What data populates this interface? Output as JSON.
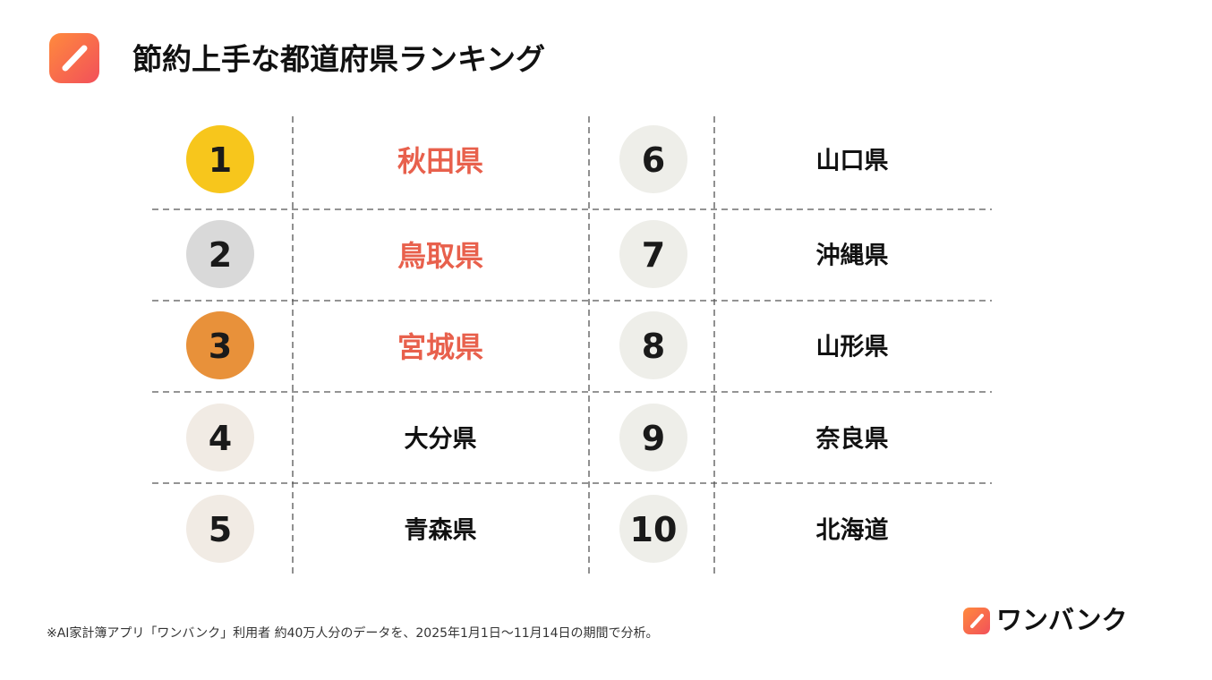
{
  "header": {
    "title": "節約上手な都道府県ランキング"
  },
  "table": {
    "rows": [
      {
        "rank": 1,
        "name": "秋田県"
      },
      {
        "rank": 2,
        "name": "鳥取県"
      },
      {
        "rank": 3,
        "name": "宮城県"
      },
      {
        "rank": 4,
        "name": "大分県"
      },
      {
        "rank": 5,
        "name": "青森県"
      },
      {
        "rank": 6,
        "name": "山口県"
      },
      {
        "rank": 7,
        "name": "沖縄県"
      },
      {
        "rank": 8,
        "name": "山形県"
      },
      {
        "rank": 9,
        "name": "奈良県"
      },
      {
        "rank": 10,
        "name": "北海道"
      }
    ]
  },
  "footer": {
    "note": "※AI家計簿アプリ「ワンバンク」利用者 約40万人分のデータを、2025年1月1日〜11月14日の期間で分析。",
    "brand": "ワンバンク"
  }
}
